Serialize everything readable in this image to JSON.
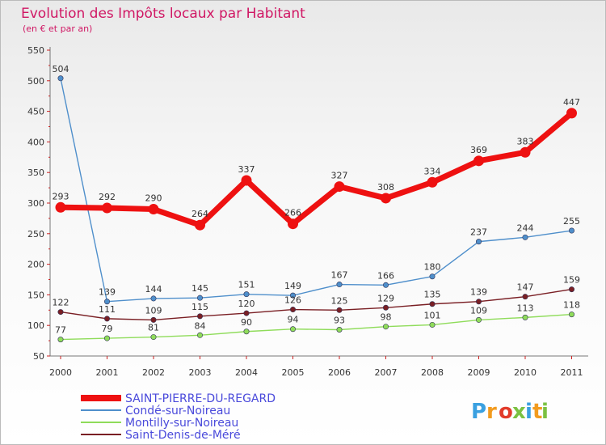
{
  "chart_data": {
    "type": "line",
    "title": "Evolution des Impôts locaux par Habitant",
    "subtitle": "(en € et par an)",
    "xlabel": "",
    "ylabel": "",
    "categories": [
      "2000",
      "2001",
      "2002",
      "2003",
      "2004",
      "2005",
      "2006",
      "2007",
      "2008",
      "2009",
      "2010",
      "2011"
    ],
    "ylim": [
      50,
      550
    ],
    "yticks": [
      50,
      100,
      150,
      200,
      250,
      300,
      350,
      400,
      450,
      500,
      550
    ],
    "grid": false,
    "legend_position": "bottom-left",
    "series": [
      {
        "name": "SAINT-PIERRE-DU-REGARD",
        "color": "#ee1111",
        "values": [
          293,
          292,
          290,
          264,
          337,
          266,
          327,
          308,
          334,
          369,
          383,
          447
        ]
      },
      {
        "name": "Condé-sur-Noireau",
        "color": "#4f8fcb",
        "values": [
          504,
          139,
          144,
          145,
          151,
          149,
          167,
          166,
          180,
          237,
          244,
          255
        ]
      },
      {
        "name": "Montilly-sur-Noireau",
        "color": "#8fdc5a",
        "values": [
          77,
          79,
          81,
          84,
          90,
          94,
          93,
          98,
          101,
          109,
          113,
          118
        ]
      },
      {
        "name": "Saint-Denis-de-Méré",
        "color": "#7a1f24",
        "values": [
          122,
          111,
          109,
          115,
          120,
          126,
          125,
          129,
          135,
          139,
          147,
          159
        ]
      }
    ]
  },
  "logo": {
    "text": "Proxiti",
    "colors": [
      "#3aa0e0",
      "#f29b1e",
      "#e23b2a",
      "#7bc142",
      "#3aa0e0",
      "#f29b1e",
      "#7bc142"
    ]
  }
}
